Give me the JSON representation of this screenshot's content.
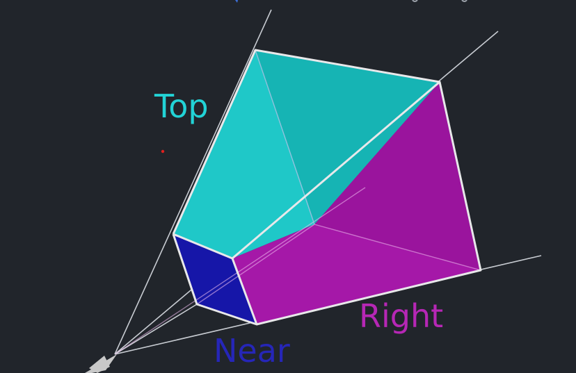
{
  "labels": {
    "top": "Top",
    "right": "Right",
    "near": "Near"
  },
  "colors": {
    "background": "#21252b",
    "top_face": "#1fc8c8",
    "top_label": "#22d3d6",
    "right_face": "#a518a8",
    "right_label": "#b627b5",
    "near_face": "#1616a8",
    "near_label": "#2626b8",
    "edges": "#e8e8ea",
    "frustum_rays": "#c8ccd2",
    "camera": "#c8c8c8",
    "marker_dot": "#e0201e"
  }
}
